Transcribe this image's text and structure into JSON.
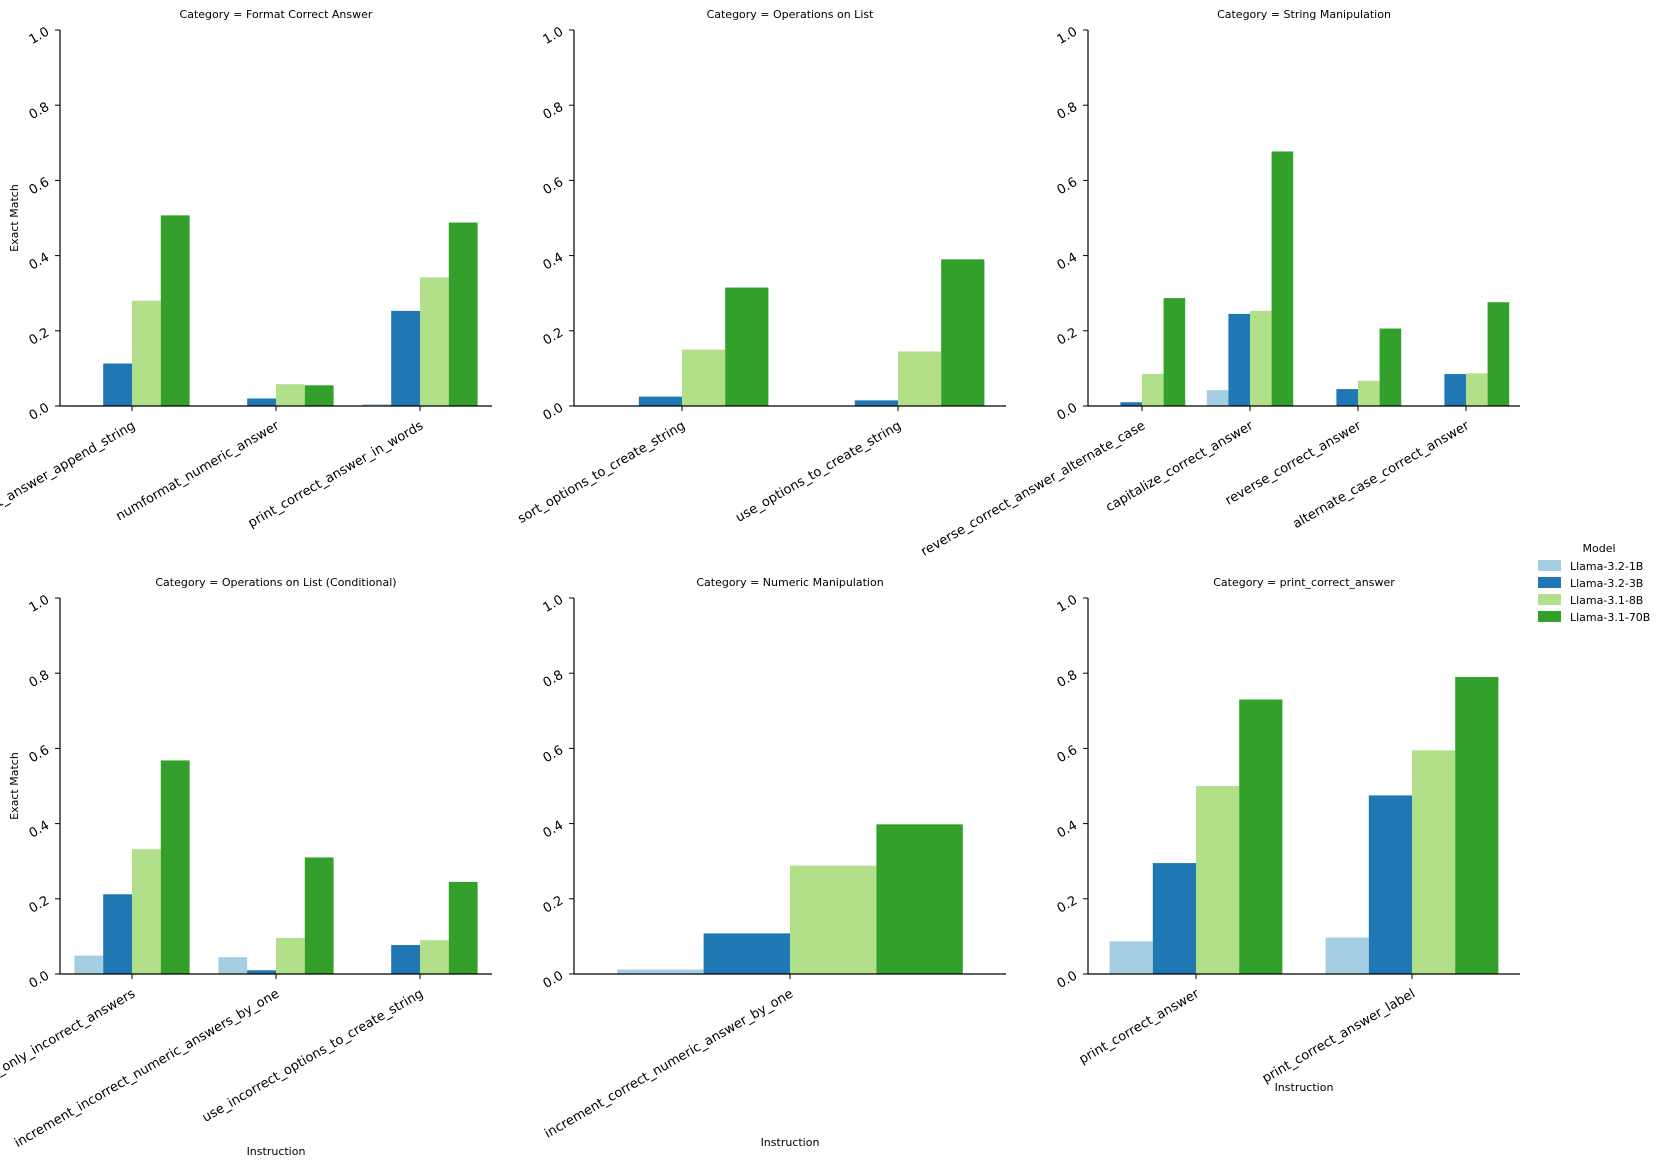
{
  "y_axis_label": "Exact Match",
  "x_axis_label": "Instruction",
  "legend": {
    "title": "Model",
    "entries": [
      {
        "name": "Llama-3.2-1B",
        "color": "#a6cee3"
      },
      {
        "name": "Llama-3.2-3B",
        "color": "#1f78b4"
      },
      {
        "name": "Llama-3.1-8B",
        "color": "#b2df8a"
      },
      {
        "name": "Llama-3.1-70B",
        "color": "#33a02c"
      }
    ]
  },
  "y_ticks": [
    "0.0",
    "0.2",
    "0.4",
    "0.6",
    "0.8",
    "1.0"
  ],
  "chart_data": [
    {
      "type": "bar",
      "title": "Category = Format Correct Answer",
      "categories": [
        "print_correct_answer_append_string",
        "numformat_numeric_answer",
        "print_correct_answer_in_words"
      ],
      "series": [
        {
          "name": "Llama-3.2-1B",
          "values": [
            0.002,
            0.0,
            0.005
          ]
        },
        {
          "name": "Llama-3.2-3B",
          "values": [
            0.113,
            0.02,
            0.253
          ]
        },
        {
          "name": "Llama-3.1-8B",
          "values": [
            0.28,
            0.058,
            0.342
          ]
        },
        {
          "name": "Llama-3.1-70B",
          "values": [
            0.507,
            0.055,
            0.488
          ]
        }
      ],
      "xlabel": "",
      "ylabel": "Exact Match",
      "ylim": [
        0,
        1
      ]
    },
    {
      "type": "bar",
      "title": "Category = Operations on List",
      "categories": [
        "sort_options_to_create_string",
        "use_options_to_create_string"
      ],
      "series": [
        {
          "name": "Llama-3.2-1B",
          "values": [
            0.0,
            0.0
          ]
        },
        {
          "name": "Llama-3.2-3B",
          "values": [
            0.025,
            0.015
          ]
        },
        {
          "name": "Llama-3.1-8B",
          "values": [
            0.15,
            0.145
          ]
        },
        {
          "name": "Llama-3.1-70B",
          "values": [
            0.315,
            0.39
          ]
        }
      ],
      "xlabel": "",
      "ylabel": "",
      "ylim": [
        0,
        1
      ]
    },
    {
      "type": "bar",
      "title": "Category = String Manipulation",
      "categories": [
        "reverse_correct_answer_alternate_case",
        "capitalize_correct_answer",
        "reverse_correct_answer",
        "alternate_case_correct_answer"
      ],
      "series": [
        {
          "name": "Llama-3.2-1B",
          "values": [
            0.0,
            0.042,
            0.0,
            0.0
          ]
        },
        {
          "name": "Llama-3.2-3B",
          "values": [
            0.01,
            0.245,
            0.045,
            0.085
          ]
        },
        {
          "name": "Llama-3.1-8B",
          "values": [
            0.085,
            0.253,
            0.067,
            0.087
          ]
        },
        {
          "name": "Llama-3.1-70B",
          "values": [
            0.287,
            0.677,
            0.206,
            0.276
          ]
        }
      ],
      "xlabel": "",
      "ylabel": "",
      "ylim": [
        0,
        1
      ]
    },
    {
      "type": "bar",
      "title": "Category = Operations on List (Conditional)",
      "categories": [
        "sort_only_incorrect_answers",
        "increment_incorrect_numeric_answers_by_one",
        "use_incorrect_options_to_create_string"
      ],
      "series": [
        {
          "name": "Llama-3.2-1B",
          "values": [
            0.049,
            0.045,
            0.0
          ]
        },
        {
          "name": "Llama-3.2-3B",
          "values": [
            0.212,
            0.01,
            0.077
          ]
        },
        {
          "name": "Llama-3.1-8B",
          "values": [
            0.332,
            0.096,
            0.09
          ]
        },
        {
          "name": "Llama-3.1-70B",
          "values": [
            0.568,
            0.31,
            0.245
          ]
        }
      ],
      "xlabel": "Instruction",
      "ylabel": "Exact Match",
      "ylim": [
        0,
        1
      ]
    },
    {
      "type": "bar",
      "title": "Category = Numeric Manipulation",
      "categories": [
        "increment_correct_numeric_answer_by_one"
      ],
      "series": [
        {
          "name": "Llama-3.2-1B",
          "values": [
            0.012
          ]
        },
        {
          "name": "Llama-3.2-3B",
          "values": [
            0.108
          ]
        },
        {
          "name": "Llama-3.1-8B",
          "values": [
            0.288
          ]
        },
        {
          "name": "Llama-3.1-70B",
          "values": [
            0.398
          ]
        }
      ],
      "xlabel": "Instruction",
      "ylabel": "",
      "ylim": [
        0,
        1
      ]
    },
    {
      "type": "bar",
      "title": "Category = print_correct_answer",
      "categories": [
        "print_correct_answer",
        "print_correct_answer_label"
      ],
      "series": [
        {
          "name": "Llama-3.2-1B",
          "values": [
            0.087,
            0.097
          ]
        },
        {
          "name": "Llama-3.2-3B",
          "values": [
            0.295,
            0.475
          ]
        },
        {
          "name": "Llama-3.1-8B",
          "values": [
            0.5,
            0.595
          ]
        },
        {
          "name": "Llama-3.1-70B",
          "values": [
            0.73,
            0.79
          ]
        }
      ],
      "xlabel": "Instruction",
      "ylabel": "",
      "ylim": [
        0,
        1
      ]
    }
  ]
}
